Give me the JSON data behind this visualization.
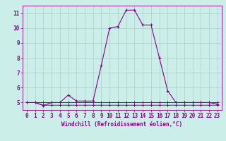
{
  "x": [
    0,
    1,
    2,
    3,
    4,
    5,
    6,
    7,
    8,
    9,
    10,
    11,
    12,
    13,
    14,
    15,
    16,
    17,
    18,
    19,
    20,
    21,
    22,
    23
  ],
  "y_main": [
    5.0,
    5.0,
    4.8,
    5.0,
    5.0,
    5.5,
    5.1,
    5.1,
    5.1,
    7.5,
    10.0,
    10.1,
    11.2,
    11.2,
    10.2,
    10.2,
    8.0,
    5.8,
    5.0,
    5.0,
    5.0,
    5.0,
    5.0,
    4.9
  ],
  "y_flat1": [
    5.0,
    5.0,
    5.0,
    5.0,
    5.0,
    5.0,
    5.0,
    5.0,
    5.0,
    5.0,
    5.0,
    5.0,
    5.0,
    5.0,
    5.0,
    5.0,
    5.0,
    5.0,
    5.0,
    5.0,
    5.0,
    5.0,
    5.0,
    5.0
  ],
  "y_flat2": [
    5.0,
    5.0,
    4.82,
    4.82,
    4.82,
    4.82,
    4.82,
    4.82,
    4.82,
    4.82,
    4.82,
    4.82,
    4.82,
    4.82,
    4.82,
    4.82,
    4.82,
    4.82,
    4.82,
    4.82,
    4.82,
    4.82,
    4.82,
    4.82
  ],
  "line_color": "#880088",
  "bg_color": "#cceee8",
  "grid_color": "#aacccc",
  "xlabel": "Windchill (Refroidissement éolien,°C)",
  "ylim": [
    4.5,
    11.5
  ],
  "xlim": [
    -0.5,
    23.5
  ],
  "yticks": [
    5,
    6,
    7,
    8,
    9,
    10,
    11
  ],
  "xticks": [
    0,
    1,
    2,
    3,
    4,
    5,
    6,
    7,
    8,
    9,
    10,
    11,
    12,
    13,
    14,
    15,
    16,
    17,
    18,
    19,
    20,
    21,
    22,
    23
  ],
  "tick_fontsize": 5.5,
  "xlabel_fontsize": 5.5
}
